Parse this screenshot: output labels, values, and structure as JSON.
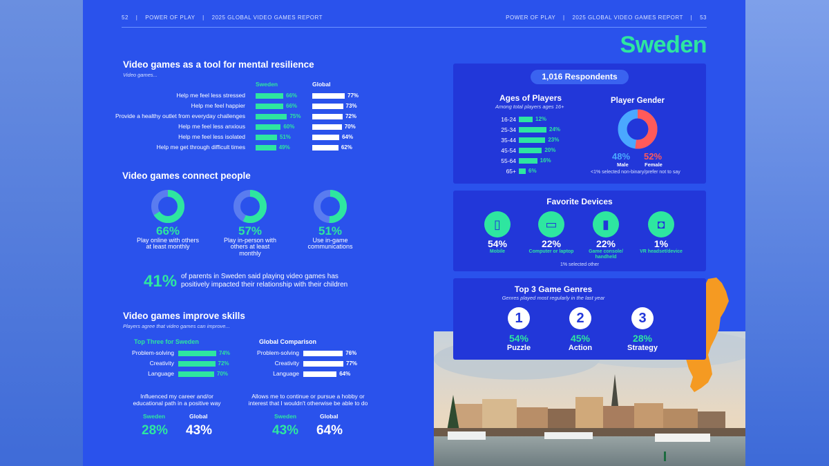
{
  "header": {
    "page_left": "52",
    "sep": "|",
    "pub_left": "POWER OF PLAY",
    "report_left": "2025 GLOBAL VIDEO GAMES REPORT",
    "pub_right": "POWER OF PLAY",
    "report_right": "2025 GLOBAL VIDEO GAMES REPORT",
    "page_right": "53"
  },
  "country": "Sweden",
  "mental": {
    "title": "Video games as a tool for mental resilience",
    "subtitle": "Video games...",
    "col_sweden": "Sweden",
    "col_global": "Global",
    "rows": [
      {
        "label": "Help me feel less stressed",
        "sweden": 66,
        "sweden_label": "66%",
        "global": 77,
        "global_label": "77%"
      },
      {
        "label": "Help me feel happier",
        "sweden": 66,
        "sweden_label": "66%",
        "global": 73,
        "global_label": "73%"
      },
      {
        "label": "Provide a healthy outlet from everyday challenges",
        "sweden": 75,
        "sweden_label": "75%",
        "global": 72,
        "global_label": "72%"
      },
      {
        "label": "Help me feel less anxious",
        "sweden": 60,
        "sweden_label": "60%",
        "global": 70,
        "global_label": "70%"
      },
      {
        "label": "Help me feel less isolated",
        "sweden": 51,
        "sweden_label": "51%",
        "global": 64,
        "global_label": "64%"
      },
      {
        "label": "Help me get through difficult times",
        "sweden": 49,
        "sweden_label": "49%",
        "global": 62,
        "global_label": "62%"
      }
    ]
  },
  "connect": {
    "title": "Video games connect people",
    "donuts": [
      {
        "value": 66,
        "label": "66%",
        "line1": "Play online with others",
        "line2": "at least monthly",
        "line3": ""
      },
      {
        "value": 57,
        "label": "57%",
        "line1": "Play in-person with",
        "line2": "others at least",
        "line3": "monthly"
      },
      {
        "value": 51,
        "label": "51%",
        "line1": "Use in-game",
        "line2": "communications",
        "line3": ""
      }
    ],
    "parents_pct": "41%",
    "parents_line1": "of parents in Sweden said playing video games has",
    "parents_line2": "positively impacted their relationship with their children"
  },
  "skills": {
    "title": "Video games improve skills",
    "subtitle": "Players agree that video games can improve...",
    "sweden_head": "Top Three for Sweden",
    "global_head": "Global Comparison",
    "sweden_rows": [
      {
        "label": "Problem-solving",
        "value": 74,
        "value_label": "74%"
      },
      {
        "label": "Creativity",
        "value": 72,
        "value_label": "72%"
      },
      {
        "label": "Language",
        "value": 70,
        "value_label": "70%"
      }
    ],
    "global_rows": [
      {
        "label": "Problem-solving",
        "value": 76,
        "value_label": "76%"
      },
      {
        "label": "Creativity",
        "value": 77,
        "value_label": "77%"
      },
      {
        "label": "Language",
        "value": 64,
        "value_label": "64%"
      }
    ],
    "career": {
      "line1": "Influenced my career and/or",
      "line2": "educational path in a positive way",
      "sweden_head": "Sweden",
      "global_head": "Global",
      "sweden": "28%",
      "global": "43%"
    },
    "hobby": {
      "line1": "Allows me to continue or pursue a hobby or",
      "line2": "interest that I wouldn't otherwise be able to do",
      "sweden_head": "Sweden",
      "global_head": "Global",
      "sweden": "43%",
      "global": "64%"
    }
  },
  "respondents": "1,016 Respondents",
  "ages": {
    "title": "Ages of Players",
    "subtitle": "Among total players ages 16+",
    "rows": [
      {
        "label": "16-24",
        "value": 12,
        "value_label": "12%"
      },
      {
        "label": "25-34",
        "value": 24,
        "value_label": "24%"
      },
      {
        "label": "35-44",
        "value": 23,
        "value_label": "23%"
      },
      {
        "label": "45-54",
        "value": 20,
        "value_label": "20%"
      },
      {
        "label": "55-64",
        "value": 16,
        "value_label": "16%"
      },
      {
        "label": "65+",
        "value": 6,
        "value_label": "6%"
      }
    ]
  },
  "gender": {
    "title": "Player Gender",
    "male": 48,
    "male_label": "48%",
    "male_name": "Male",
    "female": 52,
    "female_label": "52%",
    "female_name": "Female",
    "note": "<1% selected non-binary/prefer not to say"
  },
  "devices": {
    "title": "Favorite Devices",
    "items": [
      {
        "icon": "mobile-phone-icon",
        "pct": "54%",
        "line1": "Mobile",
        "line2": ""
      },
      {
        "icon": "laptop-icon",
        "pct": "22%",
        "line1": "Computer or laptop",
        "line2": ""
      },
      {
        "icon": "game-console-icon",
        "pct": "22%",
        "line1": "Game console/",
        "line2": "handheld"
      },
      {
        "icon": "vr-headset-icon",
        "pct": "1%",
        "line1": "VR headset/device",
        "line2": ""
      }
    ],
    "note": "1% selected other"
  },
  "genres": {
    "title": "Top 3 Game Genres",
    "subtitle": "Genres played most regularly in the last year",
    "items": [
      {
        "rank": "1",
        "pct": "54%",
        "name": "Puzzle"
      },
      {
        "rank": "2",
        "pct": "45%",
        "name": "Action"
      },
      {
        "rank": "3",
        "pct": "28%",
        "name": "Strategy"
      }
    ]
  },
  "colors": {
    "accent": "#2ee6a0",
    "panel": "#2237d9",
    "page": "#2a52ec",
    "female": "#ff5a5a",
    "male": "#4aa8ff",
    "map": "#f59a22"
  }
}
